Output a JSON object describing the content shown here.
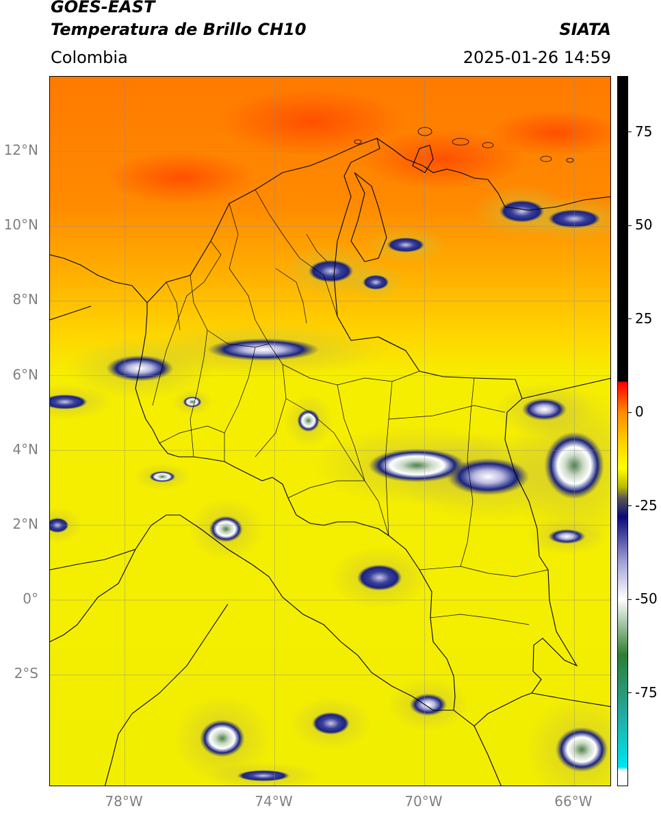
{
  "header": {
    "title_line1": "GOES-EAST",
    "title_line2": "Temperatura de Brillo CH10",
    "source": "SIATA",
    "region": "Colombia",
    "datetime": "2025-01-26 14:59"
  },
  "map": {
    "lon_range": [
      -80,
      -65
    ],
    "lat_range": [
      -5,
      14
    ],
    "lat_ticks": [
      {
        "value": 12,
        "label": "12°N"
      },
      {
        "value": 10,
        "label": "10°N"
      },
      {
        "value": 8,
        "label": "8°N"
      },
      {
        "value": 6,
        "label": "6°N"
      },
      {
        "value": 4,
        "label": "4°N"
      },
      {
        "value": 2,
        "label": "2°N"
      },
      {
        "value": 0,
        "label": "0°"
      },
      {
        "value": -2,
        "label": "2°S"
      }
    ],
    "lon_ticks": [
      {
        "value": -78,
        "label": "78°W"
      },
      {
        "value": -74,
        "label": "74°W"
      },
      {
        "value": -70,
        "label": "70°W"
      },
      {
        "value": -66,
        "label": "66°W"
      }
    ],
    "grid": true,
    "colors": {
      "warm": "#ff5a00",
      "mid": "#ffb000",
      "base": "#f2ee00",
      "cloud_dark": "#1a237e",
      "cloud_light": "#e8e8f4",
      "cloud_core": "#4e7f4e"
    },
    "cloud_cells": [
      {
        "lon": -77.6,
        "lat": 6.2,
        "rlon": 0.9,
        "rlat": 0.35,
        "level": 2
      },
      {
        "lon": -74.3,
        "lat": 6.7,
        "rlon": 1.5,
        "rlat": 0.3,
        "level": 2
      },
      {
        "lon": -72.5,
        "lat": 8.8,
        "rlon": 0.6,
        "rlat": 0.3,
        "level": 1
      },
      {
        "lon": -71.3,
        "lat": 8.5,
        "rlon": 0.35,
        "rlat": 0.2,
        "level": 1
      },
      {
        "lon": -70.5,
        "lat": 9.5,
        "rlon": 0.5,
        "rlat": 0.2,
        "level": 1
      },
      {
        "lon": -67.4,
        "lat": 10.4,
        "rlon": 0.6,
        "rlat": 0.3,
        "level": 1
      },
      {
        "lon": -66.0,
        "lat": 10.2,
        "rlon": 0.7,
        "rlat": 0.25,
        "level": 1
      },
      {
        "lon": -79.6,
        "lat": 5.3,
        "rlon": 0.6,
        "rlat": 0.2,
        "level": 1
      },
      {
        "lon": -73.1,
        "lat": 4.8,
        "rlon": 0.3,
        "rlat": 0.3,
        "level": 3
      },
      {
        "lon": -70.2,
        "lat": 3.6,
        "rlon": 1.3,
        "rlat": 0.45,
        "level": 3
      },
      {
        "lon": -68.3,
        "lat": 3.3,
        "rlon": 1.1,
        "rlat": 0.5,
        "level": 2
      },
      {
        "lon": -66.0,
        "lat": 3.6,
        "rlon": 0.8,
        "rlat": 0.9,
        "level": 3
      },
      {
        "lon": -66.8,
        "lat": 5.1,
        "rlon": 0.6,
        "rlat": 0.3,
        "level": 2
      },
      {
        "lon": -75.3,
        "lat": 1.9,
        "rlon": 0.45,
        "rlat": 0.35,
        "level": 3
      },
      {
        "lon": -71.2,
        "lat": 0.6,
        "rlon": 0.6,
        "rlat": 0.35,
        "level": 1
      },
      {
        "lon": -76.2,
        "lat": 5.3,
        "rlon": 0.25,
        "rlat": 0.15,
        "level": 3
      },
      {
        "lon": -77.0,
        "lat": 3.3,
        "rlon": 0.35,
        "rlat": 0.15,
        "level": 3
      },
      {
        "lon": -66.2,
        "lat": 1.7,
        "rlon": 0.5,
        "rlat": 0.2,
        "level": 2
      },
      {
        "lon": -75.4,
        "lat": -3.7,
        "rlon": 0.6,
        "rlat": 0.5,
        "level": 3
      },
      {
        "lon": -65.8,
        "lat": -4.0,
        "rlon": 0.7,
        "rlat": 0.6,
        "level": 3
      },
      {
        "lon": -69.9,
        "lat": -2.8,
        "rlon": 0.5,
        "rlat": 0.3,
        "level": 2
      },
      {
        "lon": -72.5,
        "lat": -3.3,
        "rlon": 0.5,
        "rlat": 0.3,
        "level": 1
      },
      {
        "lon": -74.3,
        "lat": -4.7,
        "rlon": 0.7,
        "rlat": 0.15,
        "level": 1
      },
      {
        "lon": -79.8,
        "lat": 2.0,
        "rlon": 0.3,
        "rlat": 0.2,
        "level": 1
      }
    ]
  },
  "colorbar": {
    "range": [
      -100,
      90
    ],
    "ticks": [
      {
        "value": 75,
        "label": "75"
      },
      {
        "value": 50,
        "label": "50"
      },
      {
        "value": 25,
        "label": "25"
      },
      {
        "value": 0,
        "label": "0"
      },
      {
        "value": -25,
        "label": "-25"
      },
      {
        "value": -50,
        "label": "-50"
      },
      {
        "value": -75,
        "label": "-75"
      }
    ],
    "stops": [
      {
        "value": 90,
        "color": "#000000"
      },
      {
        "value": 8.5,
        "color": "#000000"
      },
      {
        "value": 8,
        "color": "#ff0000"
      },
      {
        "value": 0,
        "color": "#ff8c00"
      },
      {
        "value": -8,
        "color": "#ffd000"
      },
      {
        "value": -15,
        "color": "#ffff00"
      },
      {
        "value": -20,
        "color": "#b8b800"
      },
      {
        "value": -23,
        "color": "#555555"
      },
      {
        "value": -28,
        "color": "#0a0a78"
      },
      {
        "value": -40,
        "color": "#a0a0d8"
      },
      {
        "value": -50,
        "color": "#ffffff"
      },
      {
        "value": -65,
        "color": "#2e7d32"
      },
      {
        "value": -80,
        "color": "#26a69a"
      },
      {
        "value": -95,
        "color": "#00e5ee"
      },
      {
        "value": -96,
        "color": "#ffffff"
      },
      {
        "value": -100,
        "color": "#ffffff"
      }
    ]
  }
}
